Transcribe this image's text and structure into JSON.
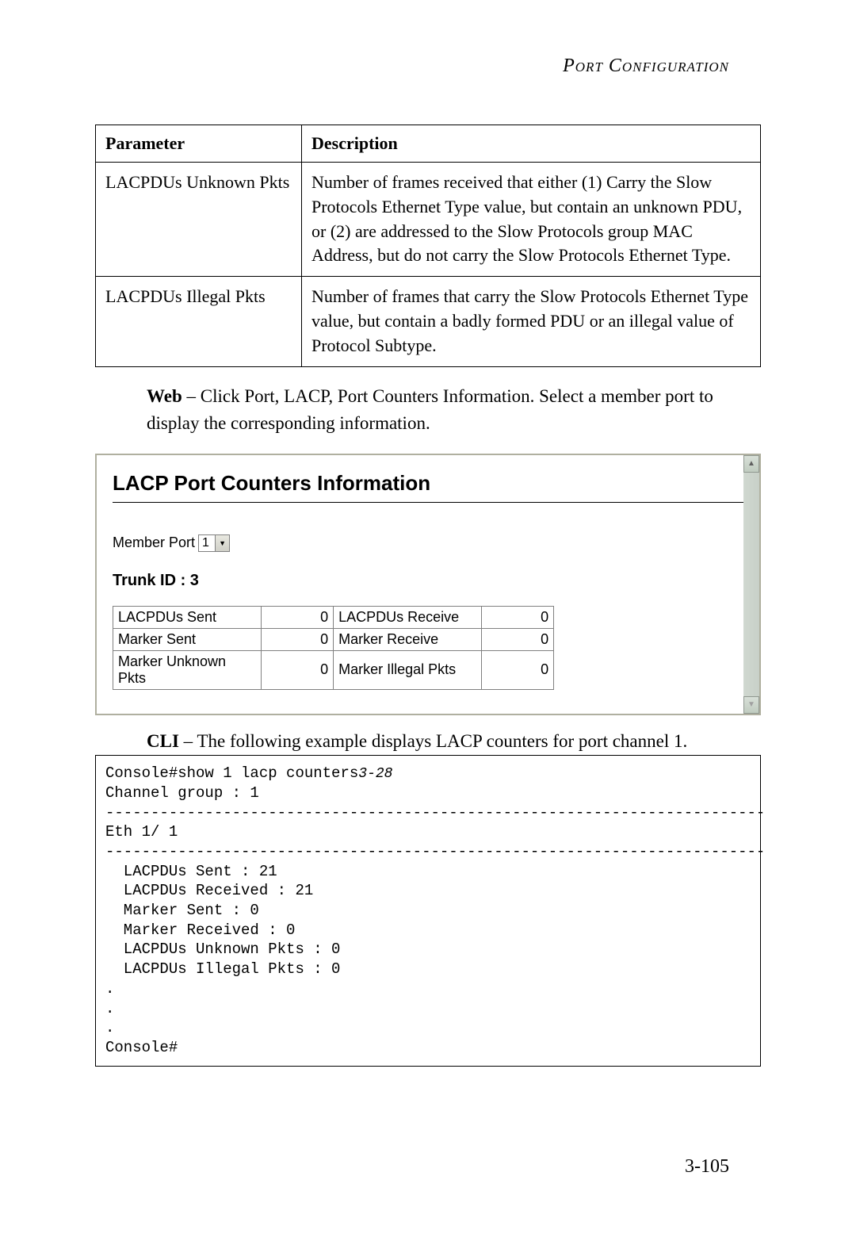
{
  "header": {
    "title": "Port Configuration"
  },
  "param_table": {
    "columns": [
      "Parameter",
      "Description"
    ],
    "rows": [
      {
        "param": "LACPDUs Unknown Pkts",
        "desc": "Number of frames received that either (1) Carry the Slow Protocols Ethernet Type value, but contain an unknown PDU, or (2) are addressed to the Slow Protocols group MAC Address, but do not carry the Slow Protocols Ethernet Type."
      },
      {
        "param": "LACPDUs Illegal Pkts",
        "desc": "Number of frames that carry the Slow Protocols Ethernet Type value, but contain a badly formed PDU or an illegal value of Protocol Subtype."
      }
    ]
  },
  "web_text": {
    "label": "Web",
    "text": " – Click Port, LACP, Port Counters Information. Select a member port to display the corresponding information."
  },
  "ui_panel": {
    "title": "LACP Port Counters Information",
    "member_port_label": "Member Port",
    "member_port_value": "1",
    "trunk_id_label": "Trunk ID : 3",
    "counters": {
      "rows": [
        {
          "l1": "LACPDUs Sent",
          "v1": "0",
          "l2": "LACPDUs Receive",
          "v2": "0"
        },
        {
          "l1": "Marker Sent",
          "v1": "0",
          "l2": "Marker Receive",
          "v2": "0"
        },
        {
          "l1": "Marker Unknown Pkts",
          "v1": "0",
          "l2": "Marker Illegal Pkts",
          "v2": "0"
        }
      ]
    }
  },
  "cli_text": {
    "label": "CLI",
    "text": " – The following example displays LACP counters for port channel 1."
  },
  "cli_box": {
    "line1_cmd": "Console#show 1 lacp counters",
    "line1_ref": "3-28",
    "body": "Channel group : 1\n-------------------------------------------------------------------------\nEth 1/ 1\n-------------------------------------------------------------------------\n  LACPDUs Sent : 21\n  LACPDUs Received : 21\n  Marker Sent : 0\n  Marker Received : 0\n  LACPDUs Unknown Pkts : 0\n  LACPDUs Illegal Pkts : 0\n.\n.\n.\nConsole#"
  },
  "page_number": "3-105"
}
